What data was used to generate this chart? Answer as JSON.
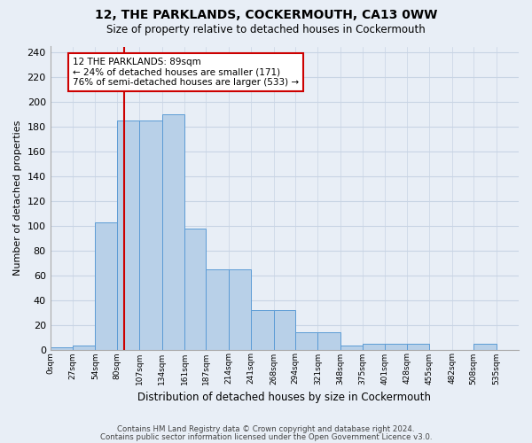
{
  "title1": "12, THE PARKLANDS, COCKERMOUTH, CA13 0WW",
  "title2": "Size of property relative to detached houses in Cockermouth",
  "xlabel": "Distribution of detached houses by size in Cockermouth",
  "ylabel": "Number of detached properties",
  "footnote1": "Contains HM Land Registry data © Crown copyright and database right 2024.",
  "footnote2": "Contains public sector information licensed under the Open Government Licence v3.0.",
  "bin_labels": [
    "0sqm",
    "27sqm",
    "54sqm",
    "80sqm",
    "107sqm",
    "134sqm",
    "161sqm",
    "187sqm",
    "214sqm",
    "241sqm",
    "268sqm",
    "294sqm",
    "321sqm",
    "348sqm",
    "375sqm",
    "401sqm",
    "428sqm",
    "455sqm",
    "482sqm",
    "508sqm",
    "535sqm"
  ],
  "bar_values": [
    2,
    3,
    103,
    185,
    185,
    190,
    98,
    65,
    65,
    32,
    32,
    14,
    14,
    3,
    5,
    5,
    5,
    0,
    0,
    5,
    0
  ],
  "bar_color": "#b8d0e8",
  "bar_edge_color": "#5b9bd5",
  "grid_color": "#c8d4e4",
  "background_color": "#e8eef6",
  "property_line_x": 89,
  "property_line_color": "#cc0000",
  "annotation_line1": "12 THE PARKLANDS: 89sqm",
  "annotation_line2": "← 24% of detached houses are smaller (171)",
  "annotation_line3": "76% of semi-detached houses are larger (533) →",
  "annotation_box_color": "#ffffff",
  "annotation_box_edge": "#cc0000",
  "ylim": [
    0,
    245
  ],
  "yticks": [
    0,
    20,
    40,
    60,
    80,
    100,
    120,
    140,
    160,
    180,
    200,
    220,
    240
  ],
  "bin_edges": [
    0,
    27,
    54,
    80,
    107,
    134,
    161,
    187,
    214,
    241,
    268,
    294,
    321,
    348,
    375,
    401,
    428,
    455,
    482,
    508,
    535,
    562
  ],
  "figsize": [
    6.0,
    5.0
  ],
  "dpi": 100
}
